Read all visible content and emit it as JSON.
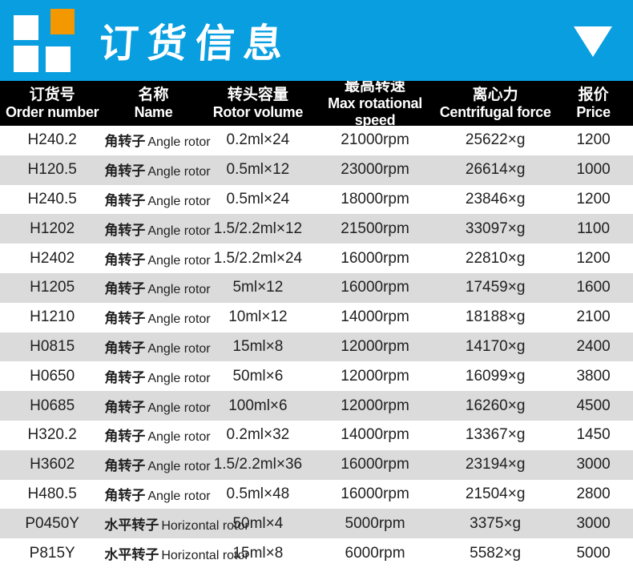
{
  "banner": {
    "title": "订货信息",
    "logo": "four-squares-logo",
    "colors": {
      "banner_blue": "#089EE0",
      "logo_orange": "#F39800",
      "logo_white": "#FFFFFF"
    }
  },
  "table": {
    "header_bg": "#000000",
    "alt_row_bg": "#DBDBDB",
    "columns": [
      {
        "cn": "订货号",
        "en": "Order number"
      },
      {
        "cn": "名称",
        "en": "Name"
      },
      {
        "cn": "转头容量",
        "en": "Rotor volume"
      },
      {
        "cn": "最高转速",
        "en": "Max rotational speed"
      },
      {
        "cn": "离心力",
        "en": "Centrifugal force"
      },
      {
        "cn": "报价",
        "en": "Price"
      }
    ],
    "rows": [
      {
        "order": "H240.2",
        "name_cn": "角转子",
        "name_en": "Angle rotor",
        "volume": "0.2ml×24",
        "speed": "21000rpm",
        "force": "25622×g",
        "price": "1200"
      },
      {
        "order": "H120.5",
        "name_cn": "角转子",
        "name_en": "Angle rotor",
        "volume": "0.5ml×12",
        "speed": "23000rpm",
        "force": "26614×g",
        "price": "1000"
      },
      {
        "order": "H240.5",
        "name_cn": "角转子",
        "name_en": "Angle rotor",
        "volume": "0.5ml×24",
        "speed": "18000rpm",
        "force": "23846×g",
        "price": "1200"
      },
      {
        "order": "H1202",
        "name_cn": "角转子",
        "name_en": "Angle rotor",
        "volume": "1.5/2.2ml×12",
        "speed": "21500rpm",
        "force": "33097×g",
        "price": "1100"
      },
      {
        "order": "H2402",
        "name_cn": "角转子",
        "name_en": "Angle rotor",
        "volume": "1.5/2.2ml×24",
        "speed": "16000rpm",
        "force": "22810×g",
        "price": "1200"
      },
      {
        "order": "H1205",
        "name_cn": "角转子",
        "name_en": "Angle rotor",
        "volume": "5ml×12",
        "speed": "16000rpm",
        "force": "17459×g",
        "price": "1600"
      },
      {
        "order": "H1210",
        "name_cn": "角转子",
        "name_en": "Angle rotor",
        "volume": "10ml×12",
        "speed": "14000rpm",
        "force": "18188×g",
        "price": "2100"
      },
      {
        "order": "H0815",
        "name_cn": "角转子",
        "name_en": "Angle rotor",
        "volume": "15ml×8",
        "speed": "12000rpm",
        "force": "14170×g",
        "price": "2400"
      },
      {
        "order": "H0650",
        "name_cn": "角转子",
        "name_en": "Angle rotor",
        "volume": "50ml×6",
        "speed": "12000rpm",
        "force": "16099×g",
        "price": "3800"
      },
      {
        "order": "H0685",
        "name_cn": "角转子",
        "name_en": "Angle rotor",
        "volume": "100ml×6",
        "speed": "12000rpm",
        "force": "16260×g",
        "price": "4500"
      },
      {
        "order": "H320.2",
        "name_cn": "角转子",
        "name_en": "Angle rotor",
        "volume": "0.2ml×32",
        "speed": "14000rpm",
        "force": "13367×g",
        "price": "1450"
      },
      {
        "order": "H3602",
        "name_cn": "角转子",
        "name_en": "Angle rotor",
        "volume": "1.5/2.2ml×36",
        "speed": "16000rpm",
        "force": "23194×g",
        "price": "3000"
      },
      {
        "order": "H480.5",
        "name_cn": "角转子",
        "name_en": "Angle rotor",
        "volume": "0.5ml×48",
        "speed": "16000rpm",
        "force": "21504×g",
        "price": "2800"
      },
      {
        "order": "P0450Y",
        "name_cn": "水平转子",
        "name_en": "Horizontal rotor",
        "volume": "50ml×4",
        "speed": "5000rpm",
        "force": "3375×g",
        "price": "3000"
      },
      {
        "order": "P815Y",
        "name_cn": "水平转子",
        "name_en": "Horizontal rotor",
        "volume": "15ml×8",
        "speed": "6000rpm",
        "force": "5582×g",
        "price": "5000"
      }
    ]
  }
}
